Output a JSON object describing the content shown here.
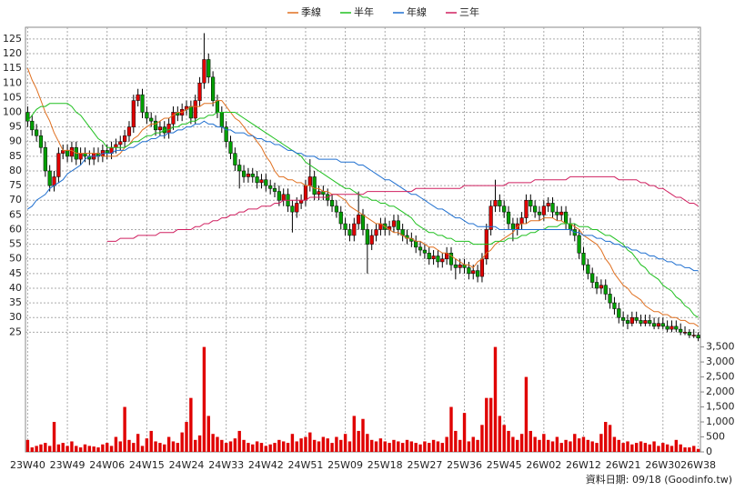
{
  "chart_data": {
    "type": "candlestick",
    "source": "資料日期: 09/18  (Goodinfo.tw)",
    "categories": [
      "23W40",
      null,
      null,
      null,
      null,
      null,
      null,
      null,
      null,
      "23W49",
      null,
      null,
      null,
      null,
      null,
      null,
      null,
      null,
      "24W06",
      null,
      null,
      null,
      null,
      null,
      null,
      null,
      null,
      "24W15",
      null,
      null,
      null,
      null,
      null,
      null,
      null,
      null,
      "24W24",
      null,
      null,
      null,
      null,
      null,
      null,
      null,
      null,
      "24W33",
      null,
      null,
      null,
      null,
      null,
      null,
      null,
      null,
      "24W42",
      null,
      null,
      null,
      null,
      null,
      null,
      null,
      null,
      "24W51",
      null,
      null,
      null,
      null,
      null,
      null,
      null,
      null,
      "25W09",
      null,
      null,
      null,
      null,
      null,
      null,
      null,
      null,
      "25W18",
      null,
      null,
      null,
      null,
      null,
      null,
      null,
      null,
      "25W27",
      null,
      null,
      null,
      null,
      null,
      null,
      null,
      null,
      "25W36",
      null,
      null,
      null,
      null,
      null,
      null,
      null,
      null,
      "25W45",
      null,
      null,
      null,
      null,
      null,
      null,
      null,
      null,
      "26W02",
      null,
      null,
      null,
      null,
      null,
      null,
      null,
      null,
      "26W12",
      null,
      null,
      null,
      null,
      null,
      null,
      null,
      null,
      "26W21",
      null,
      null,
      null,
      null,
      null,
      null,
      null,
      null,
      "26W30",
      null,
      null,
      null,
      null,
      null,
      null,
      null,
      "26W38"
    ],
    "open": [
      100,
      97,
      94,
      92,
      88,
      80,
      75,
      78,
      86,
      87,
      85,
      88,
      84,
      86,
      85,
      84,
      86,
      85,
      87,
      86,
      88,
      89,
      90,
      92,
      95,
      104,
      106,
      100,
      98,
      97,
      94,
      95,
      93,
      96,
      100,
      99,
      101,
      102,
      98,
      104,
      110,
      118,
      112,
      104,
      100,
      95,
      90,
      86,
      82,
      80,
      78,
      79,
      78,
      76,
      77,
      75,
      74,
      73,
      70,
      72,
      68,
      66,
      69,
      70,
      75,
      78,
      72,
      73,
      72,
      70,
      68,
      66,
      62,
      60,
      58,
      62,
      65,
      60,
      55,
      58,
      60,
      62,
      60,
      61,
      63,
      60,
      58,
      57,
      56,
      54,
      53,
      52,
      50,
      51,
      49,
      50,
      52,
      48,
      47,
      48,
      47,
      45,
      46,
      44,
      50,
      60,
      68,
      70,
      68,
      66,
      62,
      60,
      62,
      64,
      70,
      68,
      66,
      65,
      68,
      69,
      66,
      65,
      66,
      62,
      60,
      58,
      52,
      48,
      45,
      42,
      40,
      41,
      38,
      35,
      33,
      30,
      29,
      28,
      30,
      29,
      28,
      29,
      28,
      27,
      28,
      27,
      26,
      27,
      26,
      25,
      25,
      24,
      24
    ],
    "high": [
      102,
      99,
      96,
      94,
      90,
      82,
      80,
      88,
      89,
      89,
      90,
      90,
      88,
      88,
      87,
      88,
      88,
      89,
      89,
      90,
      91,
      92,
      94,
      97,
      106,
      108,
      108,
      102,
      100,
      99,
      97,
      97,
      98,
      102,
      102,
      103,
      104,
      104,
      106,
      112,
      127,
      120,
      114,
      106,
      102,
      97,
      92,
      88,
      84,
      82,
      81,
      81,
      80,
      79,
      79,
      77,
      76,
      75,
      74,
      74,
      70,
      71,
      72,
      77,
      84,
      80,
      75,
      75,
      74,
      72,
      70,
      68,
      64,
      62,
      64,
      73,
      67,
      62,
      60,
      62,
      64,
      64,
      63,
      65,
      65,
      62,
      60,
      59,
      58,
      56,
      55,
      54,
      53,
      53,
      52,
      54,
      54,
      50,
      50,
      50,
      49,
      48,
      48,
      52,
      62,
      70,
      77,
      72,
      70,
      68,
      64,
      64,
      66,
      72,
      72,
      70,
      68,
      70,
      71,
      71,
      68,
      68,
      68,
      64,
      62,
      60,
      54,
      50,
      47,
      44,
      43,
      43,
      40,
      37,
      35,
      32,
      31,
      32,
      32,
      31,
      31,
      31,
      30,
      30,
      30,
      29,
      29,
      29,
      28,
      27,
      26,
      26,
      25
    ],
    "low": [
      95,
      92,
      90,
      86,
      78,
      73,
      73,
      76,
      84,
      83,
      83,
      82,
      82,
      83,
      82,
      82,
      83,
      83,
      84,
      84,
      86,
      87,
      88,
      90,
      93,
      102,
      98,
      96,
      95,
      92,
      92,
      91,
      91,
      94,
      97,
      97,
      99,
      96,
      96,
      102,
      108,
      110,
      102,
      98,
      93,
      88,
      84,
      80,
      74,
      76,
      76,
      76,
      74,
      74,
      73,
      72,
      71,
      68,
      68,
      66,
      59,
      64,
      67,
      68,
      73,
      70,
      70,
      70,
      68,
      66,
      64,
      60,
      58,
      56,
      56,
      60,
      58,
      45,
      53,
      56,
      58,
      58,
      58,
      59,
      58,
      56,
      55,
      54,
      52,
      51,
      50,
      48,
      48,
      47,
      47,
      48,
      46,
      43,
      45,
      45,
      43,
      43,
      42,
      42,
      48,
      58,
      66,
      66,
      64,
      60,
      56,
      58,
      60,
      62,
      66,
      64,
      63,
      63,
      66,
      64,
      63,
      63,
      60,
      58,
      56,
      50,
      46,
      43,
      40,
      38,
      38,
      36,
      33,
      31,
      28,
      27,
      26,
      27,
      28,
      27,
      27,
      27,
      26,
      26,
      26,
      25,
      25,
      25,
      24,
      24,
      23,
      23,
      22
    ],
    "close": [
      97,
      94,
      92,
      88,
      80,
      75,
      78,
      86,
      87,
      85,
      88,
      84,
      86,
      85,
      84,
      86,
      85,
      87,
      86,
      88,
      89,
      90,
      92,
      95,
      104,
      106,
      100,
      98,
      97,
      94,
      95,
      93,
      96,
      100,
      99,
      101,
      102,
      98,
      104,
      110,
      118,
      112,
      104,
      100,
      95,
      90,
      86,
      82,
      80,
      78,
      79,
      78,
      76,
      77,
      75,
      74,
      73,
      70,
      72,
      68,
      66,
      69,
      70,
      75,
      78,
      72,
      73,
      72,
      70,
      68,
      66,
      62,
      60,
      58,
      62,
      65,
      60,
      55,
      58,
      60,
      62,
      60,
      61,
      63,
      60,
      58,
      57,
      56,
      54,
      53,
      52,
      50,
      51,
      49,
      50,
      52,
      48,
      47,
      48,
      47,
      45,
      46,
      44,
      50,
      60,
      68,
      70,
      68,
      66,
      62,
      60,
      62,
      64,
      70,
      68,
      66,
      65,
      68,
      69,
      66,
      65,
      66,
      62,
      60,
      58,
      52,
      48,
      45,
      42,
      40,
      41,
      38,
      35,
      33,
      30,
      29,
      28,
      30,
      29,
      28,
      29,
      28,
      27,
      28,
      27,
      26,
      27,
      26,
      25,
      25,
      24,
      24,
      23
    ],
    "volume": [
      400,
      150,
      200,
      250,
      300,
      200,
      1000,
      250,
      300,
      200,
      350,
      200,
      150,
      250,
      200,
      180,
      150,
      250,
      300,
      200,
      500,
      350,
      1500,
      400,
      300,
      600,
      200,
      450,
      700,
      350,
      300,
      250,
      500,
      350,
      300,
      650,
      1000,
      1800,
      400,
      550,
      3500,
      1200,
      600,
      500,
      400,
      300,
      350,
      450,
      700,
      400,
      300,
      250,
      350,
      300,
      200,
      250,
      300,
      400,
      350,
      300,
      600,
      350,
      450,
      500,
      650,
      400,
      350,
      500,
      450,
      300,
      500,
      400,
      600,
      350,
      1200,
      700,
      1100,
      600,
      400,
      350,
      450,
      350,
      300,
      400,
      350,
      300,
      400,
      350,
      300,
      250,
      350,
      300,
      400,
      350,
      300,
      500,
      1500,
      700,
      400,
      1300,
      350,
      500,
      400,
      900,
      1800,
      1800,
      3500,
      1200,
      900,
      700,
      500,
      400,
      600,
      2500,
      700,
      500,
      400,
      600,
      400,
      350,
      500,
      300,
      400,
      350,
      600,
      450,
      500,
      400,
      350,
      300,
      600,
      1000,
      900,
      500,
      400,
      300,
      350,
      250,
      300,
      350,
      300,
      250,
      350,
      200,
      300,
      250,
      200,
      400,
      250,
      150,
      150,
      200,
      100
    ],
    "up_color": "#e00000",
    "down_color": "#00a000",
    "wick_color": "#000000",
    "volume_color": "#e00000",
    "series": [
      {
        "name": "季線",
        "color": "#e07020",
        "values": [
          115,
          111,
          108,
          104,
          100,
          97,
          93,
          90,
          87,
          87,
          87,
          86,
          86,
          86,
          86,
          86,
          86,
          85,
          85,
          85,
          85,
          86,
          88,
          89,
          91,
          92,
          94,
          95,
          96,
          96,
          97,
          98,
          98,
          99,
          100,
          100,
          101,
          102,
          102,
          102,
          103,
          103,
          103,
          104,
          104,
          102,
          100,
          98,
          97,
          95,
          93,
          92,
          90,
          88,
          85,
          83,
          80,
          78,
          78,
          77,
          77,
          76,
          76,
          75,
          75,
          74,
          74,
          73,
          73,
          72,
          72,
          71,
          70,
          68,
          67,
          66,
          65,
          64,
          63,
          62,
          62,
          61,
          60,
          59,
          59,
          58,
          57,
          57,
          56,
          56,
          55,
          54,
          54,
          53,
          52,
          52,
          51,
          50,
          49,
          48,
          48,
          47,
          49,
          50,
          52,
          53,
          55,
          56,
          57,
          58,
          59,
          61,
          62,
          62,
          63,
          63,
          63,
          64,
          64,
          64,
          63,
          63,
          62,
          62,
          61,
          60,
          58,
          57,
          56,
          55,
          53,
          50,
          48,
          45,
          43,
          41,
          40,
          38,
          37,
          36,
          34,
          33,
          32,
          32,
          31,
          31,
          30,
          30,
          29,
          29,
          28,
          28,
          27
        ]
      },
      {
        "name": "半年",
        "color": "#20c020",
        "values": [
          97,
          99,
          101,
          102,
          102,
          103,
          103,
          103,
          103,
          103,
          102,
          100,
          99,
          97,
          95,
          93,
          91,
          90,
          88,
          88,
          88,
          88,
          88,
          89,
          90,
          90,
          91,
          92,
          92,
          93,
          93,
          94,
          94,
          95,
          95,
          96,
          96,
          97,
          97,
          98,
          98,
          99,
          99,
          100,
          100,
          100,
          100,
          100,
          99,
          98,
          97,
          96,
          95,
          94,
          93,
          92,
          91,
          90,
          89,
          88,
          87,
          86,
          85,
          83,
          82,
          81,
          80,
          79,
          78,
          77,
          76,
          75,
          74,
          74,
          73,
          72,
          71,
          71,
          70,
          70,
          69,
          69,
          68,
          68,
          67,
          66,
          65,
          64,
          62,
          61,
          60,
          59,
          59,
          58,
          58,
          57,
          57,
          56,
          56,
          56,
          56,
          55,
          55,
          55,
          55,
          55,
          56,
          56,
          56,
          57,
          57,
          57,
          58,
          58,
          59,
          59,
          60,
          60,
          61,
          61,
          61,
          62,
          62,
          62,
          62,
          61,
          61,
          61,
          60,
          60,
          59,
          58,
          58,
          57,
          56,
          55,
          53,
          52,
          50,
          48,
          47,
          45,
          44,
          43,
          41,
          40,
          39,
          37,
          36,
          34,
          33,
          31,
          30
        ]
      },
      {
        "name": "年線",
        "color": "#2070d0",
        "values": [
          67,
          68,
          70,
          71,
          72,
          74,
          75,
          76,
          77,
          79,
          80,
          81,
          82,
          84,
          85,
          85,
          85,
          86,
          86,
          86,
          87,
          87,
          87,
          88,
          88,
          89,
          90,
          90,
          91,
          91,
          92,
          92,
          93,
          93,
          94,
          94,
          95,
          95,
          96,
          96,
          97,
          96,
          96,
          95,
          95,
          94,
          94,
          93,
          93,
          93,
          92,
          92,
          91,
          91,
          90,
          90,
          89,
          89,
          88,
          87,
          87,
          86,
          86,
          85,
          85,
          85,
          84,
          84,
          84,
          84,
          84,
          83,
          83,
          83,
          83,
          82,
          82,
          81,
          80,
          79,
          78,
          77,
          77,
          76,
          75,
          74,
          73,
          72,
          72,
          71,
          70,
          69,
          68,
          67,
          67,
          66,
          65,
          64,
          64,
          63,
          62,
          62,
          61,
          61,
          61,
          61,
          61,
          60,
          60,
          60,
          60,
          60,
          60,
          60,
          60,
          60,
          60,
          60,
          60,
          60,
          60,
          60,
          60,
          60,
          59,
          59,
          58,
          58,
          58,
          57,
          57,
          56,
          56,
          55,
          55,
          54,
          54,
          53,
          53,
          52,
          52,
          51,
          51,
          50,
          50,
          49,
          49,
          48,
          48,
          47,
          47,
          46,
          46
        ]
      },
      {
        "name": "三年",
        "color": "#d02060",
        "values": [
          null,
          null,
          null,
          null,
          null,
          null,
          null,
          null,
          null,
          null,
          null,
          null,
          null,
          null,
          null,
          null,
          null,
          null,
          56,
          56,
          56,
          57,
          57,
          57,
          57,
          58,
          58,
          58,
          58,
          58,
          59,
          59,
          59,
          59,
          60,
          60,
          60,
          60,
          61,
          61,
          62,
          62,
          63,
          63,
          64,
          64,
          65,
          65,
          66,
          66,
          67,
          67,
          67,
          68,
          68,
          68,
          69,
          69,
          70,
          70,
          70,
          70,
          70,
          70,
          71,
          71,
          71,
          71,
          71,
          72,
          72,
          72,
          72,
          72,
          72,
          72,
          72,
          73,
          73,
          73,
          73,
          73,
          73,
          73,
          73,
          73,
          73,
          73,
          74,
          74,
          74,
          74,
          74,
          74,
          74,
          74,
          74,
          74,
          74,
          75,
          75,
          75,
          75,
          75,
          75,
          75,
          75,
          75,
          75,
          76,
          76,
          76,
          76,
          76,
          76,
          77,
          77,
          77,
          77,
          77,
          77,
          77,
          77,
          78,
          78,
          78,
          78,
          78,
          78,
          78,
          78,
          78,
          78,
          78,
          77,
          77,
          77,
          77,
          77,
          76,
          76,
          75,
          75,
          74,
          74,
          73,
          72,
          71,
          71,
          70,
          69,
          69,
          68
        ]
      }
    ],
    "ylim": [
      22,
      129
    ],
    "yticks": [
      25,
      30,
      35,
      40,
      45,
      50,
      55,
      60,
      65,
      70,
      75,
      80,
      85,
      90,
      95,
      100,
      105,
      110,
      115,
      120,
      125
    ],
    "y2lim": [
      0,
      3700
    ],
    "y2ticks": [
      0,
      500,
      {
        "value": 1000,
        "label": "1,000"
      },
      {
        "value": 1500,
        "label": "1,500"
      },
      {
        "value": 2000,
        "label": "2,000"
      },
      {
        "value": 2500,
        "label": "2,500"
      },
      {
        "value": 3000,
        "label": "3,000"
      },
      {
        "value": 3500,
        "label": "3,500"
      }
    ],
    "grid": true,
    "legend": "top"
  }
}
